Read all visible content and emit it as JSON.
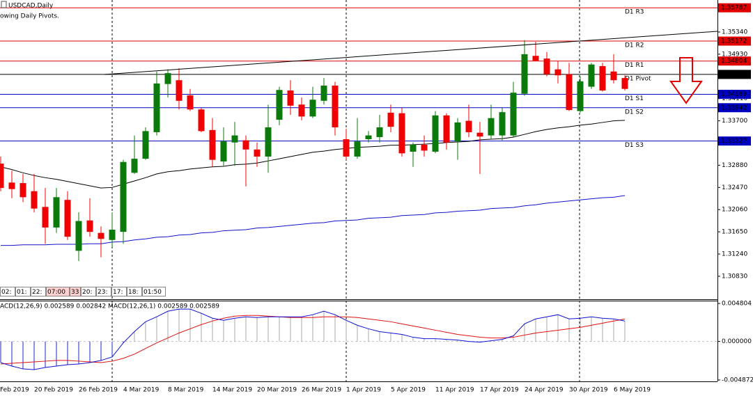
{
  "chart_data": [
    {
      "type": "candlestick",
      "title": "USDCAD,Daily",
      "subtitle": "owing Daily Pivots.",
      "categories": [
        "Feb 2019",
        null,
        null,
        null,
        "20 Feb 2019",
        null,
        null,
        null,
        "26 Feb 2019",
        null,
        null,
        null,
        "4 Mar 2019",
        null,
        null,
        null,
        "8 Mar 2019",
        null,
        null,
        null,
        "14 Mar 2019",
        null,
        null,
        null,
        "20 Mar 2019",
        null,
        null,
        null,
        "26 Mar 2019",
        null,
        null,
        null,
        "1 Apr 2019",
        null,
        null,
        null,
        "5 Apr 2019",
        null,
        null,
        null,
        "11 Apr 2019",
        null,
        null,
        null,
        "17 Apr 2019",
        null,
        null,
        null,
        "24 Apr 2019",
        null,
        null,
        null,
        "30 Apr 2019",
        null,
        null,
        null,
        "6 May 2019"
      ],
      "open": [
        1.3291,
        1.3256,
        1.3255,
        1.324,
        1.3211,
        1.3173,
        1.3224,
        1.313,
        1.3186,
        1.3163,
        1.315,
        1.3165,
        1.3274,
        1.33,
        1.3349,
        1.3438,
        1.3445,
        1.3417,
        1.3391,
        1.3353,
        1.3295,
        1.333,
        1.3334,
        1.3317,
        1.3304,
        1.3372,
        1.3426,
        1.34,
        1.3378,
        1.3407,
        1.3435,
        1.3336,
        1.3304,
        1.3336,
        1.334,
        1.3385,
        1.3384,
        1.3313,
        1.3326,
        1.3313,
        1.338,
        1.3332,
        1.337,
        1.3348,
        1.3343,
        1.3343,
        1.3343,
        1.342,
        1.349,
        1.3485,
        1.3465,
        1.3456,
        1.3388,
        1.3433,
        1.3471,
        1.3461,
        1.3449
      ],
      "high": [
        1.3304,
        1.3278,
        1.3272,
        1.3272,
        1.3246,
        1.3246,
        1.324,
        1.3201,
        1.3227,
        1.3175,
        1.3201,
        1.3298,
        1.3343,
        1.3358,
        1.3461,
        1.3465,
        1.3467,
        1.3429,
        1.3394,
        1.3375,
        1.3358,
        1.3368,
        1.3343,
        1.333,
        1.34,
        1.3433,
        1.3445,
        1.3413,
        1.3433,
        1.3449,
        1.3442,
        1.3355,
        1.3375,
        1.3351,
        1.3381,
        1.34,
        1.3394,
        1.333,
        1.3343,
        1.3388,
        1.3384,
        1.3375,
        1.34,
        1.3368,
        1.34,
        1.3394,
        1.3442,
        1.3519,
        1.3516,
        1.3497,
        1.348,
        1.3477,
        1.3452,
        1.3477,
        1.3477,
        1.3493,
        1.3454
      ],
      "low": [
        1.324,
        1.3227,
        1.322,
        1.3201,
        1.3143,
        1.3163,
        1.315,
        1.3111,
        1.3156,
        1.3118,
        1.3137,
        1.3143,
        1.3272,
        1.3298,
        1.3343,
        1.3413,
        1.3391,
        1.3388,
        1.3349,
        1.3285,
        1.3287,
        1.3287,
        1.3249,
        1.3285,
        1.3274,
        1.3362,
        1.3381,
        1.3371,
        1.3375,
        1.34,
        1.3343,
        1.3298,
        1.33,
        1.333,
        1.333,
        1.3349,
        1.3304,
        1.3285,
        1.3304,
        1.331,
        1.3317,
        1.3298,
        1.334,
        1.3272,
        1.3336,
        1.3334,
        1.3339,
        1.3416,
        1.348,
        1.3452,
        1.3439,
        1.3388,
        1.3385,
        1.3429,
        1.3424,
        1.3439,
        1.3426
      ],
      "close": [
        1.3246,
        1.3244,
        1.3229,
        1.3208,
        1.3173,
        1.3229,
        1.3156,
        1.3185,
        1.3165,
        1.3152,
        1.3169,
        1.3294,
        1.33,
        1.3351,
        1.3439,
        1.3458,
        1.3407,
        1.3391,
        1.3351,
        1.3298,
        1.3332,
        1.3343,
        1.3317,
        1.3304,
        1.3358,
        1.3427,
        1.3398,
        1.3378,
        1.3409,
        1.3435,
        1.3358,
        1.3304,
        1.3332,
        1.3343,
        1.3358,
        1.3359,
        1.331,
        1.3326,
        1.3315,
        1.338,
        1.333,
        1.3367,
        1.3349,
        1.3341,
        1.3375,
        1.3386,
        1.3422,
        1.3493,
        1.3481,
        1.3456,
        1.3454,
        1.339,
        1.3443,
        1.3474,
        1.3426,
        1.3445,
        1.3429
      ],
      "up_color": "#0a7a0a",
      "down_color": "#f00000",
      "series": [
        {
          "color": "#000000",
          "values": [
            1.3285,
            1.328,
            1.3274,
            1.3269,
            1.3265,
            1.3262,
            1.3258,
            1.3254,
            1.325,
            1.3246,
            1.3247,
            1.3253,
            1.3259,
            1.3265,
            1.3272,
            1.3276,
            1.3278,
            1.3281,
            1.3283,
            1.3285,
            1.3286,
            1.3289,
            1.329,
            1.3292,
            1.3296,
            1.33,
            1.3304,
            1.3308,
            1.3312,
            1.3314,
            1.3317,
            1.3319,
            1.3321,
            1.3322,
            1.3323,
            1.3325,
            1.3325,
            1.3326,
            1.3327,
            1.3328,
            1.333,
            1.3331,
            1.3332,
            1.3335,
            1.3336,
            1.3337,
            1.334,
            1.3345,
            1.335,
            1.3354,
            1.3357,
            1.3359,
            1.3362,
            1.3364,
            1.3367,
            1.337,
            1.3371
          ]
        },
        {
          "color": "#1010c8",
          "values": [
            1.314,
            1.314,
            1.3141,
            1.3141,
            1.3141,
            1.3142,
            1.3142,
            1.3142,
            1.3143,
            1.3143,
            1.3146,
            1.3147,
            1.315,
            1.3152,
            1.3155,
            1.3156,
            1.3159,
            1.316,
            1.3163,
            1.3164,
            1.3167,
            1.3168,
            1.3169,
            1.3172,
            1.3173,
            1.3175,
            1.3177,
            1.3179,
            1.3181,
            1.3182,
            1.3185,
            1.3186,
            1.3187,
            1.319,
            1.3191,
            1.3192,
            1.3195,
            1.3196,
            1.3197,
            1.32,
            1.3201,
            1.3203,
            1.3204,
            1.3205,
            1.3208,
            1.3209,
            1.321,
            1.3213,
            1.3215,
            1.3218,
            1.322,
            1.3222,
            1.3224,
            1.3226,
            1.3228,
            1.3229,
            1.3232
          ]
        }
      ],
      "pivots": [
        {
          "label": "D1 R3",
          "value": 1.35787,
          "color": "#e00000"
        },
        {
          "label": "D1 R2",
          "value": 1.35172,
          "color": "#e00000"
        },
        {
          "label": "D1 R1",
          "value": 1.34804,
          "color": "#e00000"
        },
        {
          "label": "D1 Pivot",
          "value": 1.34557,
          "color": "#000000"
        },
        {
          "label": "D1 S1",
          "value": 1.34189,
          "color": "#0000c0"
        },
        {
          "label": "D1 S2",
          "value": 1.33942,
          "color": "#0000c0"
        },
        {
          "label": "D1 S3",
          "value": 1.33327,
          "color": "#0000c0"
        }
      ],
      "ylim": [
        1.30405,
        1.35931
      ],
      "yticks": [
        {
          "value": 1.3534,
          "label": "1.35340"
        },
        {
          "value": 1.3493,
          "label": "1.34930"
        },
        {
          "value": 1.3411,
          "label": "1.34110"
        },
        {
          "value": 1.337,
          "label": "1.33700"
        },
        {
          "value": 1.3288,
          "label": "1.32880"
        },
        {
          "value": 1.3247,
          "label": "1.32470"
        },
        {
          "value": 1.3206,
          "label": "1.32060"
        },
        {
          "value": 1.3165,
          "label": "1.31650"
        },
        {
          "value": 1.3124,
          "label": "1.31240"
        },
        {
          "value": 1.3083,
          "label": "1.30830"
        }
      ],
      "time_boxes": [
        "02:",
        "01:",
        "22:",
        "07:00",
        "33",
        "20:",
        "23:",
        "17:",
        "18:",
        "01:50"
      ]
    },
    {
      "type": "macd",
      "title": "ACD(12,26,9) 0.002589 0.002842 MACD(12,26,1) 0.002589 0.002589",
      "series": [
        {
          "kind": "histogram",
          "color": "#a8a8a8",
          "values": [
            -0.00267,
            -0.003115,
            -0.003471,
            -0.00356,
            -0.003293,
            -0.003115,
            -0.002937,
            -0.002848,
            -0.00267,
            -0.002403,
            -0.001958,
            -0.000178,
            0.001246,
            0.002492,
            0.003115,
            0.003827,
            0.004094,
            0.004094,
            0.00356,
            0.002937,
            0.00267,
            0.002937,
            0.003115,
            0.003026,
            0.003115,
            0.003115,
            0.003115,
            0.003115,
            0.003382,
            0.003827,
            0.003382,
            0.00267,
            0.002047,
            0.001602,
            0.001246,
            0.001068,
            0.00089,
            0.000534,
            0.000356,
            0.000356,
            0.000267,
            0.000178,
            0,
            -8.9e-05,
            8.9e-05,
            0.000267,
            0.000712,
            0.002225,
            0.002848,
            0.003115,
            0.003382,
            0.002848,
            0.002937,
            0.003115,
            0.002937,
            0.002848,
            0.002589
          ]
        },
        {
          "kind": "line",
          "color": "#e01010",
          "values": [
            -0.002848,
            -0.002759,
            -0.00267,
            -0.002581,
            -0.002492,
            -0.002403,
            -0.002403,
            -0.002492,
            -0.002581,
            -0.00267,
            -0.002492,
            -0.002136,
            -0.001602,
            -0.00089,
            -0.000178,
            0.000445,
            0.001068,
            0.001602,
            0.002136,
            0.002581,
            0.002937,
            0.003204,
            0.003293,
            0.003293,
            0.003204,
            0.003115,
            0.003026,
            0.003026,
            0.003026,
            0.003115,
            0.003115,
            0.003115,
            0.003026,
            0.002848,
            0.00267,
            0.002492,
            0.002225,
            0.001958,
            0.001691,
            0.001424,
            0.001157,
            0.00089,
            0.000712,
            0.000534,
            0.000445,
            0.000445,
            0.000534,
            0.000801,
            0.001068,
            0.001246,
            0.001424,
            0.001602,
            0.00178,
            0.002047,
            0.002314,
            0.002581,
            0.002842
          ]
        },
        {
          "kind": "line",
          "color": "#1010d0",
          "values": [
            -0.00267,
            -0.003115,
            -0.003471,
            -0.00356,
            -0.003293,
            -0.003115,
            -0.002937,
            -0.002848,
            -0.00267,
            -0.002403,
            -0.001958,
            -0.000178,
            0.001246,
            0.002492,
            0.003115,
            0.003827,
            0.004094,
            0.004094,
            0.00356,
            0.002937,
            0.00267,
            0.002937,
            0.003115,
            0.003026,
            0.003115,
            0.003115,
            0.003115,
            0.003115,
            0.003382,
            0.003827,
            0.003382,
            0.00267,
            0.002047,
            0.001602,
            0.001246,
            0.001068,
            0.00089,
            0.000534,
            0.000356,
            0.000356,
            0.000267,
            0.000178,
            0,
            -8.9e-05,
            8.9e-05,
            0.000267,
            0.000712,
            0.002225,
            0.002848,
            0.003115,
            0.003382,
            0.002848,
            0.002937,
            0.003115,
            0.002937,
            0.002848,
            0.002589
          ]
        }
      ],
      "ylim": [
        -0.00505,
        0.00516
      ],
      "yticks": [
        0.004804,
        {
          "value": 0,
          "label": "0.000000"
        },
        -0.004872
      ]
    }
  ]
}
